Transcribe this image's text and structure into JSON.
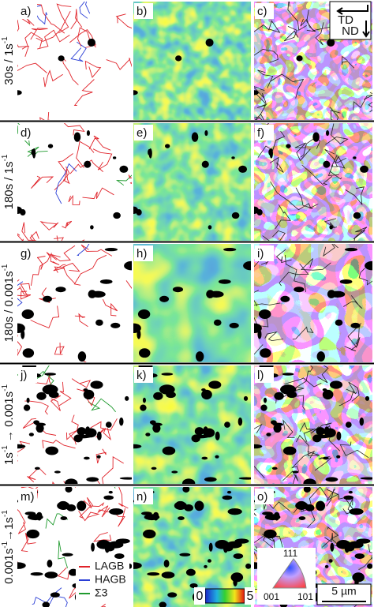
{
  "panels": [
    "a)",
    "b)",
    "c)",
    "d)",
    "e)",
    "f)",
    "g)",
    "h)",
    "i)",
    "j)",
    "k)",
    "l)",
    "m)",
    "n)",
    "o)"
  ],
  "rows": [
    {
      "label": [
        {
          "text": "30s / 1s",
          "sup": false
        },
        {
          "text": "-1",
          "sup": true
        }
      ]
    },
    {
      "label": [
        {
          "text": "180s / 1s",
          "sup": false
        },
        {
          "text": "-1",
          "sup": true
        }
      ]
    },
    {
      "label": [
        {
          "text": "180s / 0.001s",
          "sup": false
        },
        {
          "text": "-1",
          "sup": true
        }
      ]
    },
    {
      "label": [
        {
          "text": "1s",
          "sup": false
        },
        {
          "text": "-1",
          "sup": true
        },
        {
          "text": " → 0.001s",
          "sup": false
        },
        {
          "text": "-1",
          "sup": true
        }
      ]
    },
    {
      "label": [
        {
          "text": "0.001s",
          "sup": false
        },
        {
          "text": "-1",
          "sup": true
        },
        {
          "text": "→1s",
          "sup": false
        },
        {
          "text": "-1",
          "sup": true
        }
      ]
    }
  ],
  "legend": [
    {
      "name": "LAGB",
      "color": "#e0232a"
    },
    {
      "name": "HAGB",
      "color": "#2b3fd6"
    },
    {
      "name": "Σ3",
      "color": "#1f9a2e"
    }
  ],
  "colorbar": {
    "min": "0",
    "max": "5"
  },
  "ipf_triangle": {
    "top": "111",
    "left": "001",
    "right": "101"
  },
  "axes_key": {
    "horizontal": "TD",
    "vertical": "ND"
  },
  "scale_bar": "5 µm"
}
